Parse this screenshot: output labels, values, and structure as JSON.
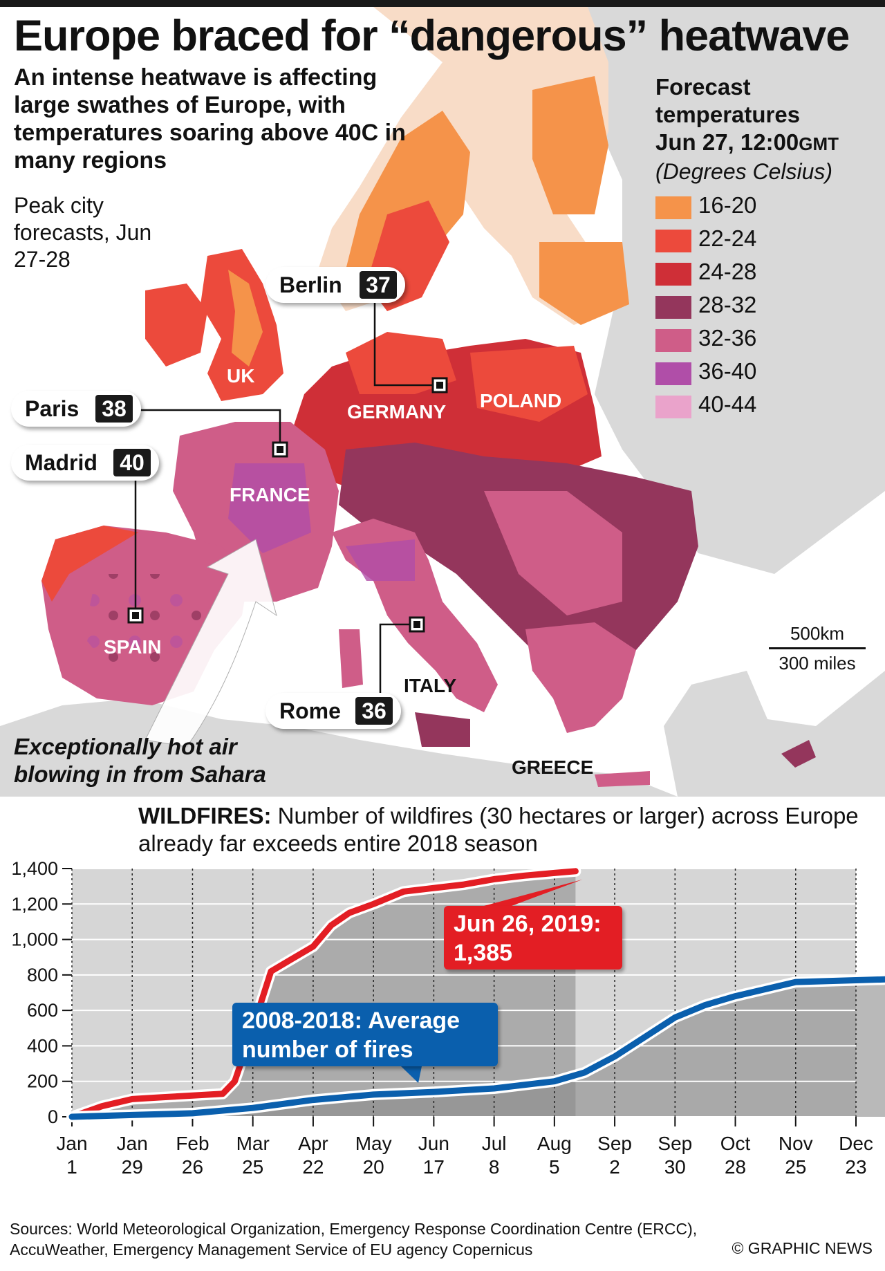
{
  "header": {
    "title": "Europe braced for “dangerous” heatwave",
    "subtitle": "An intense heatwave is affecting large swathes of Europe, with temperatures soaring above 40C in many regions",
    "peak_note": "Peak city forecasts, Jun 27-28"
  },
  "legend": {
    "title": "Forecast temperatures",
    "date_main": "Jun 27, 12:00",
    "date_tz": "GMT",
    "units": "(Degrees Celsius)",
    "items": [
      {
        "label": "16-20",
        "color": "#f5934a"
      },
      {
        "label": "22-24",
        "color": "#ec4a3c"
      },
      {
        "label": "24-28",
        "color": "#cf2f37"
      },
      {
        "label": "28-32",
        "color": "#94365c"
      },
      {
        "label": "32-36",
        "color": "#cf5d88"
      },
      {
        "label": "36-40",
        "color": "#b04ea8"
      },
      {
        "label": "40-44",
        "color": "#eaa3cb"
      }
    ]
  },
  "cities": [
    {
      "name": "Berlin",
      "value": "37"
    },
    {
      "name": "Paris",
      "value": "38"
    },
    {
      "name": "Madrid",
      "value": "40"
    },
    {
      "name": "Rome",
      "value": "36"
    }
  ],
  "countries": {
    "uk": "UK",
    "germany": "GERMANY",
    "poland": "POLAND",
    "france": "FRANCE",
    "spain": "SPAIN",
    "italy": "ITALY",
    "greece": "GREECE"
  },
  "scale": {
    "km": "500km",
    "miles": "300 miles"
  },
  "sahara_note": "Exceptionally hot air blowing in from Sahara",
  "wildfires": {
    "heading_bold": "WILDFIRES:",
    "heading_rest": " Number of wildfires (30 hectares or larger) across Europe already far exceeds entire 2018 season",
    "callout_2019_line1": "Jun 26, 2019:",
    "callout_2019_line2": "1,385",
    "callout_avg_line1": "2008-2018: Average",
    "callout_avg_line2": "number of fires"
  },
  "chart_data": {
    "type": "line",
    "title": "",
    "ylim": [
      0,
      1400
    ],
    "yticks": [
      0,
      200,
      400,
      600,
      800,
      1000,
      1200,
      1400
    ],
    "ytick_labels": [
      "0",
      "200",
      "400",
      "600",
      "800",
      "1,000",
      "1,200",
      "1,400"
    ],
    "xticks": [
      {
        "l1": "Jan",
        "l2": "1"
      },
      {
        "l1": "Jan",
        "l2": "29"
      },
      {
        "l1": "Feb",
        "l2": "26"
      },
      {
        "l1": "Mar",
        "l2": "25"
      },
      {
        "l1": "Apr",
        "l2": "22"
      },
      {
        "l1": "May",
        "l2": "20"
      },
      {
        "l1": "Jun",
        "l2": "17"
      },
      {
        "l1": "Jul",
        "l2": "8"
      },
      {
        "l1": "Aug",
        "l2": "5"
      },
      {
        "l1": "Sep",
        "l2": "2"
      },
      {
        "l1": "Sep",
        "l2": "30"
      },
      {
        "l1": "Oct",
        "l2": "28"
      },
      {
        "l1": "Nov",
        "l2": "25"
      },
      {
        "l1": "Dec",
        "l2": "23"
      }
    ],
    "grid": true,
    "series": [
      {
        "name": "Jun 26, 2019",
        "color": "#e31e24",
        "points": [
          [
            0,
            0
          ],
          [
            0.5,
            60
          ],
          [
            1,
            100
          ],
          [
            1.5,
            110
          ],
          [
            2,
            120
          ],
          [
            2.5,
            130
          ],
          [
            2.7,
            200
          ],
          [
            3,
            500
          ],
          [
            3.3,
            820
          ],
          [
            3.6,
            880
          ],
          [
            4,
            960
          ],
          [
            4.3,
            1080
          ],
          [
            4.6,
            1150
          ],
          [
            5,
            1200
          ],
          [
            5.5,
            1270
          ],
          [
            6,
            1290
          ],
          [
            6.5,
            1310
          ],
          [
            7,
            1340
          ],
          [
            7.5,
            1360
          ],
          [
            8,
            1375
          ],
          [
            8.35,
            1385
          ]
        ]
      },
      {
        "name": "2008-2018: Average number of fires",
        "color": "#0a5fad",
        "points": [
          [
            0,
            0
          ],
          [
            1,
            10
          ],
          [
            2,
            20
          ],
          [
            3,
            50
          ],
          [
            4,
            95
          ],
          [
            5,
            125
          ],
          [
            6,
            140
          ],
          [
            7,
            160
          ],
          [
            7.5,
            180
          ],
          [
            8,
            200
          ],
          [
            8.5,
            250
          ],
          [
            9,
            340
          ],
          [
            9.5,
            450
          ],
          [
            10,
            560
          ],
          [
            10.5,
            630
          ],
          [
            11,
            680
          ],
          [
            11.5,
            720
          ],
          [
            12,
            760
          ],
          [
            13,
            770
          ],
          [
            14,
            780
          ]
        ]
      }
    ]
  },
  "footer": {
    "sources_line1": "Sources: World Meteorological Organization, Emergency Response Coordination Centre (ERCC),",
    "sources_line2": "AccuWeather, Emergency Management Service of EU agency Copernicus",
    "credit": "© GRAPHIC NEWS"
  }
}
